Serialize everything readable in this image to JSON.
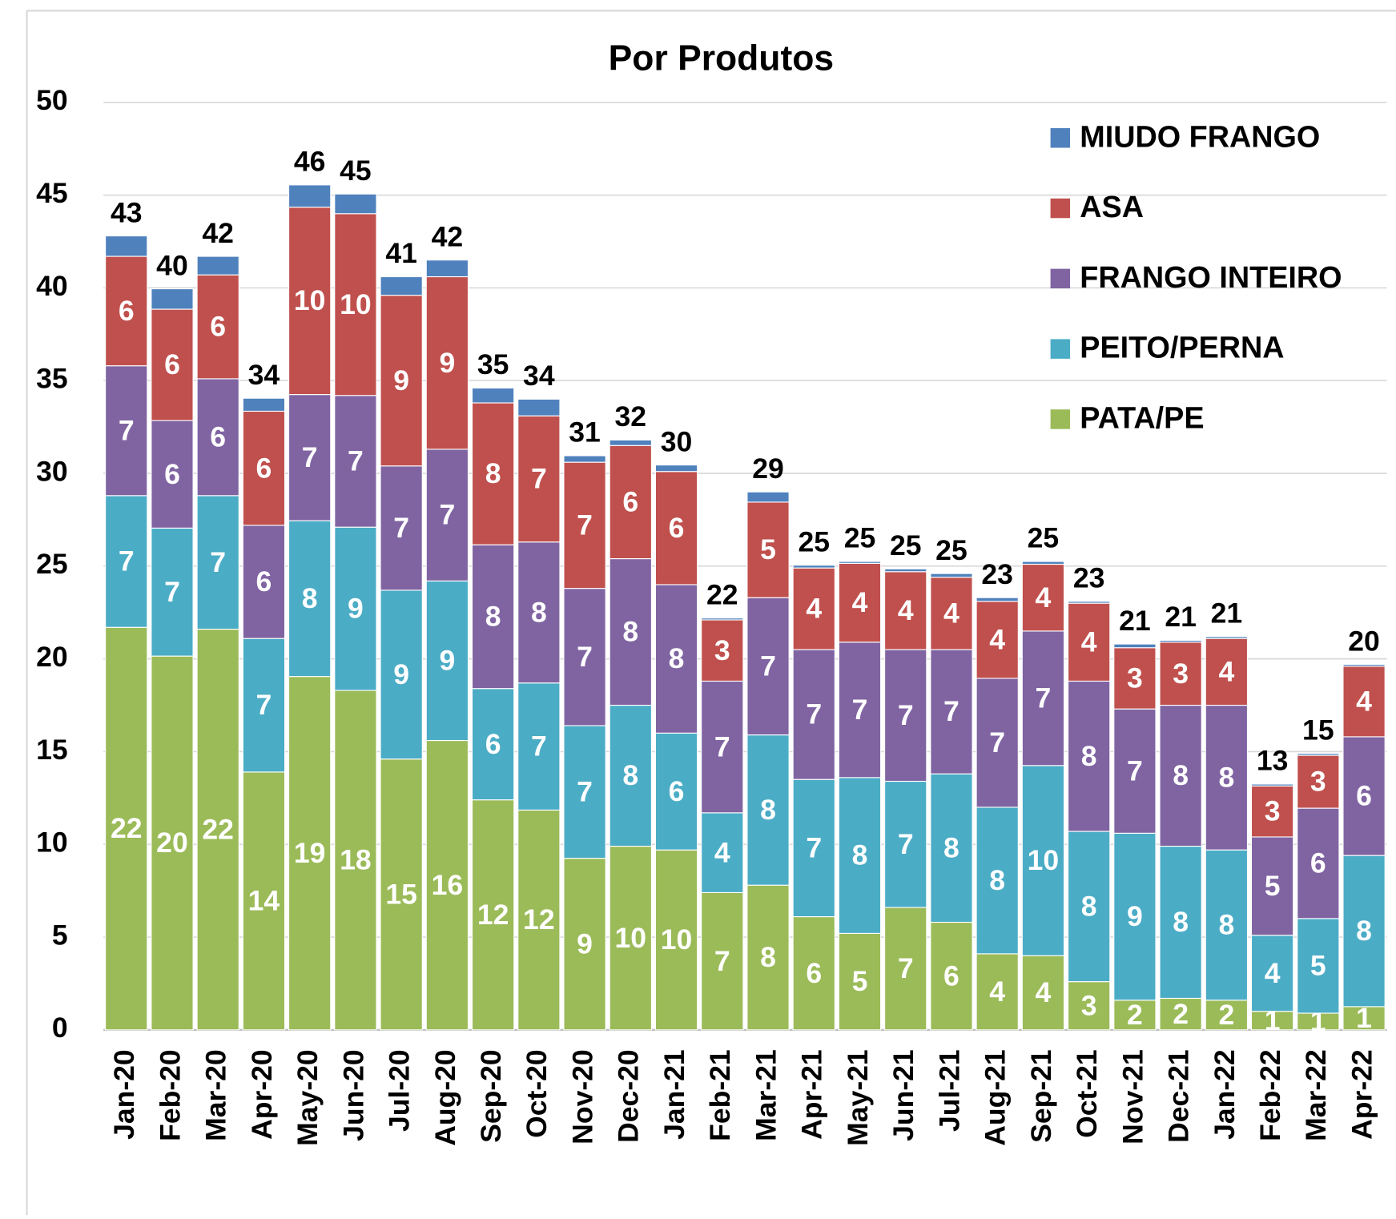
{
  "chart_data": {
    "type": "stacked_bar",
    "title": "Por Produtos",
    "categories": [
      "Jan-20",
      "Feb-20",
      "Mar-20",
      "Apr-20",
      "May-20",
      "Jun-20",
      "Jul-20",
      "Aug-20",
      "Sep-20",
      "Oct-20",
      "Nov-20",
      "Dec-20",
      "Jan-21",
      "Feb-21",
      "Mar-21",
      "Apr-21",
      "May-21",
      "Jun-21",
      "Jul-21",
      "Aug-21",
      "Sep-21",
      "Oct-21",
      "Nov-21",
      "Dec-21",
      "Jan-22",
      "Feb-22",
      "Mar-22",
      "Apr-22"
    ],
    "series": [
      {
        "name": "PATA/PE",
        "color": "#9bbb59",
        "values": [
          21.7,
          20.15,
          21.6,
          13.9,
          19.05,
          18.3,
          14.6,
          15.6,
          12.4,
          11.85,
          9.25,
          9.9,
          9.7,
          7.4,
          7.8,
          6.1,
          5.2,
          6.6,
          5.8,
          4.1,
          4.0,
          2.6,
          1.6,
          1.7,
          1.6,
          1.0,
          0.9,
          1.25
        ],
        "value_labels": [
          "22",
          "20",
          "22",
          "14",
          "19",
          "18",
          "15",
          "16",
          "12",
          "12",
          "9",
          "10",
          "10",
          "7",
          "8",
          "6",
          "5",
          "7",
          "6",
          "4",
          "4",
          "3",
          "2",
          "2",
          "2",
          "1",
          "1",
          "1"
        ]
      },
      {
        "name": "PEITO/PERNA",
        "color": "#4bacc6",
        "values": [
          7.1,
          6.9,
          7.2,
          7.2,
          8.4,
          8.8,
          9.1,
          8.6,
          6.0,
          6.85,
          7.15,
          7.6,
          6.3,
          4.3,
          8.1,
          7.4,
          8.4,
          6.8,
          8.0,
          7.9,
          10.25,
          8.1,
          9.0,
          8.2,
          8.1,
          4.1,
          5.1,
          8.15
        ],
        "value_labels": [
          "7",
          "7",
          "7",
          "7",
          "8",
          "9",
          "9",
          "9",
          "6",
          "7",
          "7",
          "8",
          "6",
          "4",
          "8",
          "7",
          "8",
          "7",
          "8",
          "8",
          "10",
          "8",
          "9",
          "8",
          "8",
          "4",
          "5",
          "8"
        ]
      },
      {
        "name": "FRANGO INTEIRO",
        "color": "#8064a2",
        "values": [
          7.0,
          5.8,
          6.3,
          6.1,
          6.8,
          7.1,
          6.7,
          7.1,
          7.75,
          7.6,
          7.4,
          7.9,
          8.0,
          7.1,
          7.4,
          7.0,
          7.3,
          7.1,
          6.7,
          6.95,
          7.25,
          8.1,
          6.7,
          7.6,
          7.8,
          5.3,
          5.95,
          6.4
        ],
        "value_labels": [
          "7",
          "6",
          "6",
          "6",
          "7",
          "7",
          "7",
          "7",
          "8",
          "8",
          "7",
          "8",
          "8",
          "7",
          "7",
          "7",
          "7",
          "7",
          "7",
          "7",
          "7",
          "8",
          "7",
          "8",
          "8",
          "5",
          "6",
          "6"
        ]
      },
      {
        "name": "ASA",
        "color": "#c0504d",
        "values": [
          5.9,
          6.0,
          5.6,
          6.15,
          10.1,
          9.8,
          9.2,
          9.3,
          7.65,
          6.8,
          6.8,
          6.1,
          6.1,
          3.3,
          5.15,
          4.4,
          4.25,
          4.2,
          3.9,
          4.15,
          3.6,
          4.2,
          3.3,
          3.4,
          3.6,
          2.75,
          2.85,
          3.8
        ],
        "value_labels": [
          "6",
          "6",
          "6",
          "6",
          "10",
          "10",
          "9",
          "9",
          "8",
          "7",
          "7",
          "6",
          "6",
          "3",
          "5",
          "4",
          "4",
          "4",
          "4",
          "4",
          "4",
          "4",
          "3",
          "3",
          "4",
          "3",
          "3",
          "4"
        ]
      },
      {
        "name": "MIUDO FRANGO",
        "color": "#4f81bd",
        "values": [
          1.1,
          1.1,
          1.0,
          0.7,
          1.2,
          1.06,
          1.0,
          0.9,
          0.8,
          0.9,
          0.35,
          0.3,
          0.35,
          0.1,
          0.55,
          0.15,
          0.1,
          0.15,
          0.2,
          0.2,
          0.15,
          0.1,
          0.2,
          0.1,
          0.1,
          0.1,
          0.1,
          0.1
        ]
      }
    ],
    "totals": [
      43,
      40,
      42,
      34,
      46,
      45,
      41,
      42,
      35,
      34,
      31,
      32,
      30,
      22,
      29,
      25,
      25,
      25,
      25,
      23,
      25,
      23,
      21,
      21,
      21,
      13,
      15,
      20
    ],
    "ylim": [
      0,
      50
    ],
    "yticks": [
      0,
      5,
      10,
      15,
      20,
      25,
      30,
      35,
      40,
      45,
      50
    ],
    "grid": true,
    "legend": "upper right"
  }
}
